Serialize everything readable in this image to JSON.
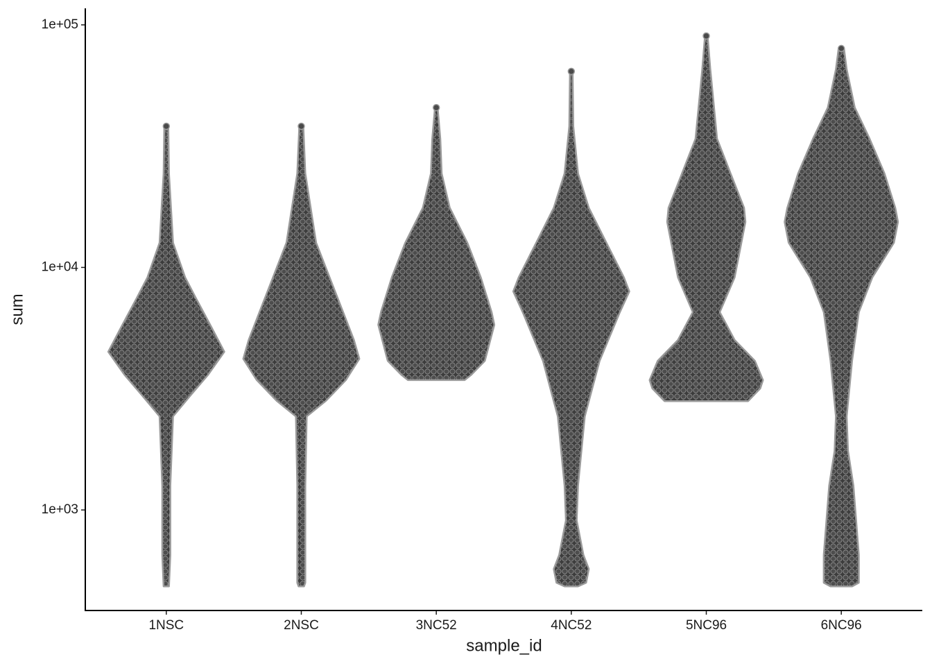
{
  "chart_data": {
    "type": "violin",
    "x_label": "sample_id",
    "y_label": "sum",
    "log_y": true,
    "categories": [
      "1NSC",
      "2NSC",
      "3NC52",
      "4NC52",
      "5NC96",
      "6NC96"
    ],
    "color": "#4a4a4a",
    "edge_color": "#9a9a9a",
    "ylim": [
      385,
      117000
    ],
    "yticks": [
      {
        "value": 1000,
        "label": "1e+03"
      },
      {
        "value": 10000,
        "label": "1e+04"
      },
      {
        "value": 100000,
        "label": "1e+05"
      }
    ],
    "series": [
      {
        "name": "1NSC",
        "values": [
          38200,
          24400,
          12640,
          9090,
          7460,
          5730,
          4490,
          3610,
          2970,
          2430,
          1259,
          652,
          484
        ],
        "widths": [
          0.015,
          0.02,
          0.05,
          0.14,
          0.22,
          0.33,
          0.43,
          0.31,
          0.18,
          0.05,
          0.03,
          0.03,
          0.02
        ]
      },
      {
        "name": "2NSC",
        "values": [
          38200,
          24400,
          12640,
          9090,
          6540,
          5020,
          4200,
          3430,
          2810,
          2430,
          1259,
          501,
          484
        ],
        "widths": [
          0.015,
          0.03,
          0.11,
          0.21,
          0.31,
          0.39,
          0.43,
          0.33,
          0.18,
          0.04,
          0.03,
          0.03,
          0.02
        ]
      },
      {
        "name": "3NC52",
        "values": [
          45600,
          33900,
          24400,
          17600,
          12640,
          9090,
          6540,
          5800,
          4120,
          3610,
          3430
        ],
        "widths": [
          0.01,
          0.03,
          0.04,
          0.1,
          0.23,
          0.33,
          0.41,
          0.43,
          0.36,
          0.26,
          0.21
        ]
      },
      {
        "name": "4NC52",
        "values": [
          64300,
          38200,
          24400,
          17600,
          12640,
          9090,
          7960,
          6540,
          4120,
          2430,
          1259,
          906,
          652,
          571,
          501,
          484
        ],
        "widths": [
          0.01,
          0.015,
          0.05,
          0.13,
          0.26,
          0.39,
          0.43,
          0.36,
          0.21,
          0.1,
          0.05,
          0.04,
          0.09,
          0.13,
          0.11,
          0.05
        ]
      },
      {
        "name": "5NC96",
        "values": [
          90000,
          65600,
          33900,
          24400,
          17600,
          15400,
          9090,
          6540,
          5020,
          4120,
          3430,
          3170,
          2810
        ],
        "widths": [
          0.01,
          0.03,
          0.08,
          0.18,
          0.28,
          0.29,
          0.21,
          0.1,
          0.21,
          0.36,
          0.42,
          0.4,
          0.31
        ]
      },
      {
        "name": "6NC96",
        "values": [
          79900,
          65600,
          45600,
          33900,
          24400,
          17600,
          15400,
          12640,
          9090,
          6540,
          4120,
          2430,
          1750,
          1259,
          906,
          652,
          501,
          484
        ],
        "widths": [
          0.02,
          0.04,
          0.1,
          0.21,
          0.32,
          0.4,
          0.42,
          0.39,
          0.23,
          0.13,
          0.08,
          0.04,
          0.05,
          0.09,
          0.11,
          0.13,
          0.13,
          0.08
        ]
      }
    ]
  }
}
